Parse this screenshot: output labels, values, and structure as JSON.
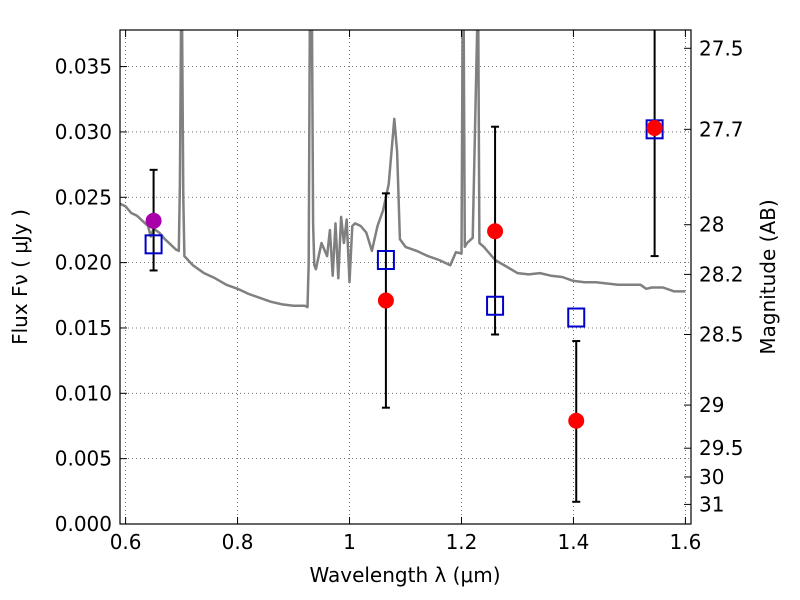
{
  "chart_data": {
    "type": "scatter",
    "xlabel": "Wavelength  λ (μm)",
    "ylabel": "Flux  Fν  ( μJy )",
    "ylabel_right": "Magnitude (AB)",
    "xlim": [
      0.59,
      1.61
    ],
    "ylim": [
      0.0,
      0.0378
    ],
    "grid": true,
    "x_ticks": [
      0.6,
      0.8,
      1.0,
      1.2,
      1.4,
      1.6
    ],
    "x_tick_labels": [
      "0.6",
      "0.8",
      "1",
      "1.2",
      "1.4",
      "1.6"
    ],
    "y_ticks": [
      0.0,
      0.005,
      0.01,
      0.015,
      0.02,
      0.025,
      0.03,
      0.035
    ],
    "y_tick_labels": [
      "0.000",
      "0.005",
      "0.010",
      "0.015",
      "0.020",
      "0.025",
      "0.030",
      "0.035"
    ],
    "right_ticks": [
      {
        "label": "27.5",
        "flux": 0.0364
      },
      {
        "label": "27.7",
        "flux": 0.0302
      },
      {
        "label": "28",
        "flux": 0.0229
      },
      {
        "label": "28.2",
        "flux": 0.0191
      },
      {
        "label": "28.5",
        "flux": 0.0145
      },
      {
        "label": "29",
        "flux": 0.0091
      },
      {
        "label": "29.5",
        "flux": 0.0058
      },
      {
        "label": "30",
        "flux": 0.0036
      },
      {
        "label": "31",
        "flux": 0.0015
      }
    ],
    "colors": {
      "model": "#808080",
      "red": "#ff0000",
      "magenta": "#aa00aa",
      "square": "#0000cc",
      "errorbar": "#000000"
    },
    "series": [
      {
        "kind": "model_spectrum",
        "x": [
          0.59,
          0.6,
          0.61,
          0.62,
          0.63,
          0.64,
          0.645,
          0.65,
          0.66,
          0.67,
          0.68,
          0.69,
          0.695,
          0.697,
          0.699,
          0.701,
          0.703,
          0.705,
          0.72,
          0.74,
          0.76,
          0.78,
          0.8,
          0.82,
          0.84,
          0.86,
          0.88,
          0.9,
          0.91,
          0.92,
          0.925,
          0.927,
          0.929,
          0.931,
          0.933,
          0.935,
          0.937,
          0.94,
          0.95,
          0.96,
          0.965,
          0.97,
          0.975,
          0.98,
          0.985,
          0.99,
          0.995,
          1.0,
          1.005,
          1.01,
          1.02,
          1.03,
          1.04,
          1.05,
          1.06,
          1.07,
          1.08,
          1.085,
          1.09,
          1.1,
          1.12,
          1.14,
          1.16,
          1.18,
          1.19,
          1.2,
          1.202,
          1.204,
          1.206,
          1.21,
          1.22,
          1.228,
          1.23,
          1.232,
          1.24,
          1.26,
          1.28,
          1.3,
          1.32,
          1.34,
          1.36,
          1.38,
          1.4,
          1.42,
          1.44,
          1.46,
          1.48,
          1.5,
          1.52,
          1.53,
          1.54,
          1.56,
          1.58,
          1.6
        ],
        "y": [
          0.0245,
          0.0243,
          0.0238,
          0.0236,
          0.0232,
          0.0228,
          0.022,
          0.0226,
          0.0223,
          0.0218,
          0.0214,
          0.021,
          0.0209,
          0.026,
          0.038,
          0.038,
          0.025,
          0.0205,
          0.0198,
          0.0192,
          0.0188,
          0.0183,
          0.018,
          0.0176,
          0.0173,
          0.017,
          0.0168,
          0.0167,
          0.0167,
          0.0167,
          0.0166,
          0.02,
          0.038,
          0.038,
          0.038,
          0.023,
          0.0198,
          0.0195,
          0.0215,
          0.0205,
          0.0225,
          0.019,
          0.023,
          0.0188,
          0.0235,
          0.0215,
          0.0233,
          0.0185,
          0.0228,
          0.023,
          0.0228,
          0.0223,
          0.0209,
          0.0228,
          0.024,
          0.026,
          0.031,
          0.0285,
          0.0218,
          0.0212,
          0.0209,
          0.0205,
          0.0202,
          0.0198,
          0.0208,
          0.0207,
          0.038,
          0.038,
          0.0212,
          0.0215,
          0.0219,
          0.038,
          0.038,
          0.0215,
          0.0212,
          0.0202,
          0.0197,
          0.0192,
          0.0191,
          0.0192,
          0.019,
          0.0189,
          0.0186,
          0.0185,
          0.0185,
          0.0184,
          0.0183,
          0.0183,
          0.0183,
          0.018,
          0.0181,
          0.0181,
          0.0178,
          0.0178
        ]
      },
      {
        "kind": "observed",
        "marker": "circle",
        "x": [
          0.65,
          1.065,
          1.26,
          1.405,
          1.545
        ],
        "y": [
          0.0232,
          0.0171,
          0.0224,
          0.0079,
          0.0303
        ],
        "color_keys": [
          "magenta",
          "red",
          "red",
          "red",
          "red"
        ],
        "yerr_low": [
          0.0194,
          0.0089,
          0.0145,
          0.0017,
          0.0205
        ],
        "yerr_high": [
          0.0271,
          0.0253,
          0.0304,
          0.014,
          0.038
        ]
      },
      {
        "kind": "model_photometry",
        "marker": "open_square",
        "x": [
          0.65,
          1.065,
          1.26,
          1.405,
          1.545
        ],
        "y": [
          0.0214,
          0.0202,
          0.0167,
          0.0158,
          0.0302
        ]
      }
    ]
  }
}
